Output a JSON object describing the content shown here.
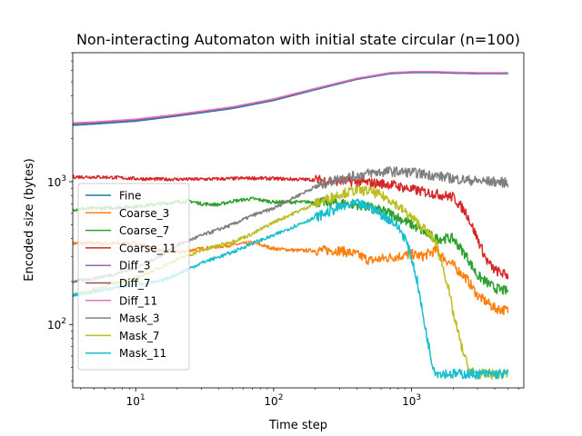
{
  "chart_data": {
    "type": "line",
    "title": "Non-interacting Automaton with initial state circular (n=100)",
    "xlabel": "Time step",
    "ylabel": "Encoded size (bytes)",
    "xscale": "log",
    "yscale": "log",
    "xlim": [
      3.5,
      6500
    ],
    "ylim": [
      36,
      8000
    ],
    "x_ticks": [
      {
        "value": 10,
        "label": "10^1"
      },
      {
        "value": 100,
        "label": "10^2"
      },
      {
        "value": 1000,
        "label": "10^3"
      }
    ],
    "y_ticks": [
      {
        "value": 100,
        "label": "10^2"
      },
      {
        "value": 1000,
        "label": "10^3"
      }
    ],
    "grid": false,
    "legend_position": "lower-left",
    "series": [
      {
        "name": "Fine",
        "color": "#1f77b4",
        "points": [
          [
            3.5,
            2480
          ],
          [
            5,
            2530
          ],
          [
            10,
            2650
          ],
          [
            20,
            2880
          ],
          [
            50,
            3250
          ],
          [
            100,
            3700
          ],
          [
            200,
            4400
          ],
          [
            400,
            5200
          ],
          [
            700,
            5700
          ],
          [
            1000,
            5800
          ],
          [
            1500,
            5800
          ],
          [
            2000,
            5750
          ],
          [
            3000,
            5700
          ],
          [
            5000,
            5700
          ]
        ]
      },
      {
        "name": "Coarse_3",
        "color": "#ff7f0e",
        "points": [
          [
            3.5,
            370
          ],
          [
            5,
            372
          ],
          [
            8,
            368
          ],
          [
            10,
            370
          ],
          [
            15,
            330
          ],
          [
            20,
            320
          ],
          [
            30,
            340
          ],
          [
            50,
            360
          ],
          [
            70,
            375
          ],
          [
            100,
            340
          ],
          [
            150,
            330
          ],
          [
            200,
            330
          ],
          [
            300,
            330
          ],
          [
            400,
            310
          ],
          [
            500,
            280
          ],
          [
            700,
            295
          ],
          [
            1000,
            310
          ],
          [
            1200,
            300
          ],
          [
            1500,
            330
          ],
          [
            1800,
            280
          ],
          [
            2000,
            260
          ],
          [
            2500,
            210
          ],
          [
            3000,
            160
          ],
          [
            4000,
            130
          ],
          [
            5000,
            125
          ]
        ]
      },
      {
        "name": "Coarse_7",
        "color": "#2ca02c",
        "points": [
          [
            3.5,
            640
          ],
          [
            5,
            650
          ],
          [
            8,
            660
          ],
          [
            10,
            670
          ],
          [
            15,
            700
          ],
          [
            20,
            720
          ],
          [
            25,
            730
          ],
          [
            30,
            700
          ],
          [
            40,
            690
          ],
          [
            50,
            730
          ],
          [
            70,
            760
          ],
          [
            100,
            720
          ],
          [
            150,
            720
          ],
          [
            200,
            720
          ],
          [
            300,
            710
          ],
          [
            400,
            690
          ],
          [
            500,
            660
          ],
          [
            700,
            600
          ],
          [
            1000,
            500
          ],
          [
            1200,
            450
          ],
          [
            1500,
            400
          ],
          [
            2000,
            400
          ],
          [
            2500,
            300
          ],
          [
            3000,
            220
          ],
          [
            4000,
            180
          ],
          [
            5000,
            170
          ]
        ]
      },
      {
        "name": "Coarse_11",
        "color": "#d62728",
        "points": [
          [
            3.5,
            1080
          ],
          [
            5,
            1080
          ],
          [
            7,
            1070
          ],
          [
            10,
            1050
          ],
          [
            15,
            1040
          ],
          [
            20,
            1040
          ],
          [
            30,
            1040
          ],
          [
            50,
            1050
          ],
          [
            70,
            1060
          ],
          [
            100,
            1050
          ],
          [
            150,
            1040
          ],
          [
            200,
            1030
          ],
          [
            300,
            1010
          ],
          [
            400,
            1000
          ],
          [
            500,
            980
          ],
          [
            700,
            960
          ],
          [
            1000,
            880
          ],
          [
            1500,
            820
          ],
          [
            2000,
            780
          ],
          [
            2500,
            600
          ],
          [
            3000,
            400
          ],
          [
            3500,
            280
          ],
          [
            4000,
            240
          ],
          [
            5000,
            220
          ]
        ]
      },
      {
        "name": "Diff_3",
        "color": "#9467bd",
        "points": [
          [
            3.5,
            2540
          ],
          [
            5,
            2580
          ],
          [
            10,
            2700
          ],
          [
            20,
            2920
          ],
          [
            50,
            3300
          ],
          [
            100,
            3750
          ],
          [
            200,
            4450
          ],
          [
            400,
            5250
          ],
          [
            700,
            5750
          ],
          [
            1000,
            5850
          ],
          [
            1500,
            5850
          ],
          [
            2000,
            5800
          ],
          [
            3000,
            5750
          ],
          [
            5000,
            5750
          ]
        ]
      },
      {
        "name": "Diff_7",
        "color": "#8c564b",
        "points": [
          [
            3.5,
            2560
          ],
          [
            5,
            2600
          ],
          [
            10,
            2720
          ],
          [
            20,
            2940
          ],
          [
            50,
            3320
          ],
          [
            100,
            3780
          ],
          [
            200,
            4480
          ],
          [
            400,
            5280
          ],
          [
            700,
            5780
          ],
          [
            1000,
            5870
          ],
          [
            1500,
            5870
          ],
          [
            2000,
            5820
          ],
          [
            3000,
            5770
          ],
          [
            5000,
            5770
          ]
        ]
      },
      {
        "name": "Diff_11",
        "color": "#e377c2",
        "points": [
          [
            3.5,
            2580
          ],
          [
            5,
            2620
          ],
          [
            10,
            2740
          ],
          [
            20,
            2960
          ],
          [
            50,
            3340
          ],
          [
            100,
            3800
          ],
          [
            200,
            4500
          ],
          [
            400,
            5300
          ],
          [
            700,
            5800
          ],
          [
            1000,
            5900
          ],
          [
            1500,
            5900
          ],
          [
            2000,
            5850
          ],
          [
            3000,
            5800
          ],
          [
            5000,
            5800
          ]
        ]
      },
      {
        "name": "Mask_3",
        "color": "#7f7f7f",
        "points": [
          [
            3.5,
            200
          ],
          [
            5,
            210
          ],
          [
            7,
            225
          ],
          [
            10,
            250
          ],
          [
            15,
            300
          ],
          [
            20,
            360
          ],
          [
            30,
            420
          ],
          [
            50,
            500
          ],
          [
            70,
            580
          ],
          [
            100,
            650
          ],
          [
            150,
            800
          ],
          [
            200,
            920
          ],
          [
            300,
            1050
          ],
          [
            400,
            1100
          ],
          [
            500,
            1150
          ],
          [
            700,
            1180
          ],
          [
            1000,
            1160
          ],
          [
            1500,
            1100
          ],
          [
            2000,
            1050
          ],
          [
            3000,
            1010
          ],
          [
            4000,
            1000
          ],
          [
            5000,
            980
          ]
        ]
      },
      {
        "name": "Mask_7",
        "color": "#bcbd22",
        "points": [
          [
            3.5,
            160
          ],
          [
            5,
            175
          ],
          [
            7,
            195
          ],
          [
            10,
            210
          ],
          [
            15,
            250
          ],
          [
            20,
            285
          ],
          [
            30,
            330
          ],
          [
            50,
            380
          ],
          [
            70,
            430
          ],
          [
            100,
            520
          ],
          [
            150,
            620
          ],
          [
            200,
            700
          ],
          [
            300,
            820
          ],
          [
            400,
            870
          ],
          [
            500,
            860
          ],
          [
            700,
            750
          ],
          [
            1000,
            560
          ],
          [
            1200,
            480
          ],
          [
            1500,
            380
          ],
          [
            1800,
            200
          ],
          [
            2000,
            120
          ],
          [
            2300,
            70
          ],
          [
            2600,
            48
          ],
          [
            3000,
            45
          ],
          [
            5000,
            45
          ]
        ]
      },
      {
        "name": "Mask_11",
        "color": "#17becf",
        "points": [
          [
            3.5,
            160
          ],
          [
            5,
            170
          ],
          [
            7,
            180
          ],
          [
            10,
            190
          ],
          [
            15,
            200
          ],
          [
            20,
            225
          ],
          [
            30,
            270
          ],
          [
            50,
            320
          ],
          [
            70,
            370
          ],
          [
            100,
            420
          ],
          [
            150,
            500
          ],
          [
            200,
            560
          ],
          [
            300,
            660
          ],
          [
            400,
            700
          ],
          [
            500,
            660
          ],
          [
            700,
            540
          ],
          [
            800,
            480
          ],
          [
            900,
            400
          ],
          [
            1000,
            290
          ],
          [
            1100,
            200
          ],
          [
            1200,
            120
          ],
          [
            1300,
            80
          ],
          [
            1400,
            55
          ],
          [
            1500,
            46
          ],
          [
            2000,
            45
          ],
          [
            5000,
            45
          ]
        ]
      }
    ]
  }
}
